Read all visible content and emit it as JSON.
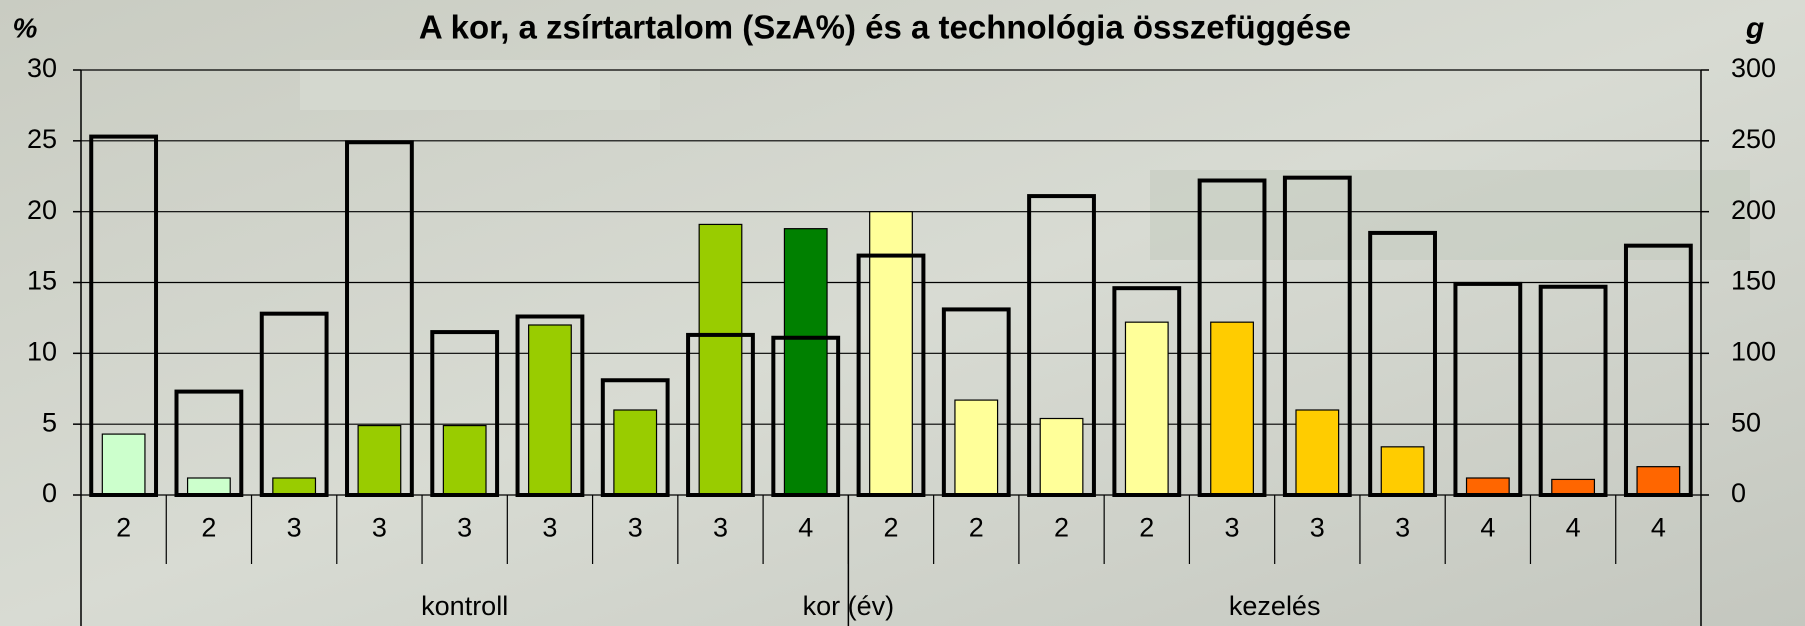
{
  "chart_data": {
    "type": "bar",
    "title": "A kor, a zsírtartalom (SzA%) és a technológia összefüggése",
    "ylabel": "%",
    "y2label": "g",
    "xlabel": "kor (év)",
    "groups": [
      {
        "label": "kontroll",
        "categories": [
          "2",
          "2",
          "3",
          "3",
          "3",
          "3",
          "3",
          "3",
          "4"
        ]
      },
      {
        "label": "kezelés",
        "categories": [
          "2",
          "2",
          "2",
          "2",
          "3",
          "3",
          "3",
          "4",
          "4",
          "4"
        ]
      }
    ],
    "series": [
      {
        "colors": [
          "#ccffcc",
          "#ccffcc",
          "#99cc00",
          "#99cc00",
          "#99cc00",
          "#99cc00",
          "#99cc00",
          "#99cc00",
          "#008000",
          "#ffff99",
          "#ffff99",
          "#ffff99",
          "#ffff99",
          "#ffcc00",
          "#ffcc00",
          "#ffcc00",
          "#ff6600",
          "#ff6600",
          "#ff6600"
        ],
        "values": [
          4.3,
          1.2,
          1.2,
          4.9,
          4.9,
          12.0,
          6.0,
          19.1,
          18.8,
          20.0,
          6.7,
          5.4,
          12.2,
          12.2,
          6.0,
          3.4,
          1.2,
          1.1,
          2.0
        ]
      },
      {
        "color": "#000000",
        "axis": "y2",
        "values": [
          253,
          73,
          128,
          249,
          115,
          126,
          81,
          113,
          111,
          169,
          131,
          211,
          146,
          222,
          224,
          185,
          149,
          147,
          176
        ]
      }
    ],
    "ylim": [
      0,
      30
    ],
    "yticks": [
      0,
      5,
      10,
      15,
      20,
      25,
      30
    ],
    "y2lim": [
      0,
      300
    ],
    "y2ticks": [
      0,
      50,
      100,
      150,
      200,
      250,
      300
    ],
    "grid": true
  }
}
